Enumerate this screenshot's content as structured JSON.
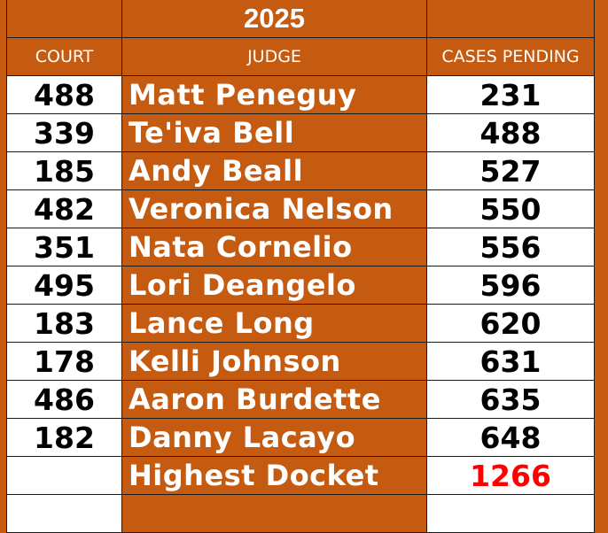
{
  "title": "2025",
  "headers": {
    "court": "COURT",
    "judge": "JUDGE",
    "cases": "CASES PENDING"
  },
  "rows": [
    {
      "court": "488",
      "judge": "Matt Peneguy",
      "cases": "231"
    },
    {
      "court": "339",
      "judge": "Te'iva Bell",
      "cases": "488"
    },
    {
      "court": "185",
      "judge": "Andy Beall",
      "cases": "527"
    },
    {
      "court": "482",
      "judge": "Veronica Nelson",
      "cases": "550"
    },
    {
      "court": "351",
      "judge": "Nata Cornelio",
      "cases": "556"
    },
    {
      "court": "495",
      "judge": "Lori Deangelo",
      "cases": "596"
    },
    {
      "court": "183",
      "judge": "Lance Long",
      "cases": "620"
    },
    {
      "court": "178",
      "judge": "Kelli Johnson",
      "cases": "631"
    },
    {
      "court": "486",
      "judge": "Aaron Burdette",
      "cases": "635"
    },
    {
      "court": "182",
      "judge": "Danny Lacayo",
      "cases": "648"
    }
  ],
  "summary": {
    "label": "Highest Docket",
    "value": "1266",
    "value_color": "#FF0000"
  },
  "colors": {
    "accent": "#C55A11"
  }
}
